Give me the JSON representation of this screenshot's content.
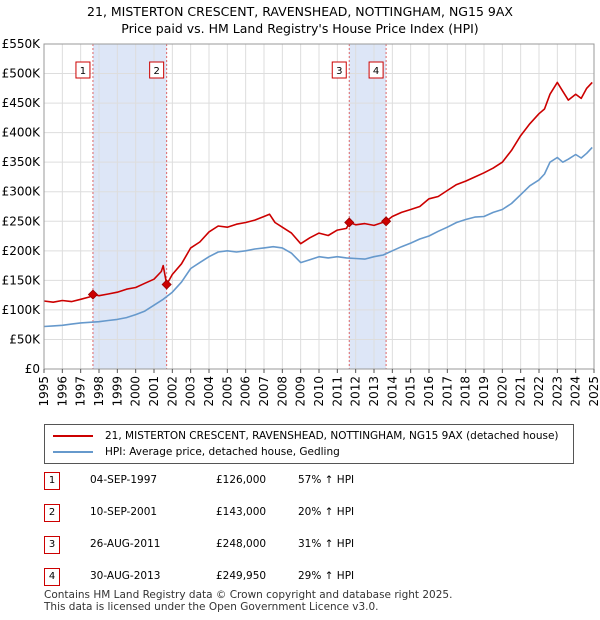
{
  "title_line1": "21, MISTERTON CRESCENT, RAVENSHEAD, NOTTINGHAM, NG15 9AX",
  "title_line2": "Price paid vs. HM Land Registry's House Price Index (HPI)",
  "colors": {
    "property": "#cc0000",
    "hpi": "#6699cc",
    "shade": "#dde6f7",
    "grid": "#dddddd",
    "marker": "#cc0000"
  },
  "legend": {
    "property_label": "21, MISTERTON CRESCENT, RAVENSHEAD, NOTTINGHAM, NG15 9AX (detached house)",
    "hpi_label": "HPI: Average price, detached house, Gedling"
  },
  "transactions": [
    {
      "num": "1",
      "date": "04-SEP-1997",
      "price": "£126,000",
      "hpi_change": "57% ↑ HPI"
    },
    {
      "num": "2",
      "date": "10-SEP-2001",
      "price": "£143,000",
      "hpi_change": "20% ↑ HPI"
    },
    {
      "num": "3",
      "date": "26-AUG-2011",
      "price": "£248,000",
      "hpi_change": "31% ↑ HPI"
    },
    {
      "num": "4",
      "date": "30-AUG-2013",
      "price": "£249,950",
      "hpi_change": "29% ↑ HPI"
    }
  ],
  "footer_line1": "Contains HM Land Registry data © Crown copyright and database right 2025.",
  "footer_line2": "This data is licensed under the Open Government Licence v3.0.",
  "chart_data": {
    "type": "line",
    "title": "21, MISTERTON CRESCENT, RAVENSHEAD, NOTTINGHAM, NG15 9AX - Price paid vs. HM Land Registry's House Price Index (HPI)",
    "xlabel": "",
    "ylabel": "",
    "xlim": [
      1995,
      2025
    ],
    "ylim": [
      0,
      550000
    ],
    "x_ticks": [
      1995,
      1996,
      1997,
      1998,
      1999,
      2000,
      2001,
      2002,
      2003,
      2004,
      2005,
      2006,
      2007,
      2008,
      2009,
      2010,
      2011,
      2012,
      2013,
      2014,
      2015,
      2016,
      2017,
      2018,
      2019,
      2020,
      2021,
      2022,
      2023,
      2024,
      2025
    ],
    "y_ticks": [
      0,
      50000,
      100000,
      150000,
      200000,
      250000,
      300000,
      350000,
      400000,
      450000,
      500000,
      550000
    ],
    "y_tick_labels": [
      "£0",
      "£50K",
      "£100K",
      "£150K",
      "£200K",
      "£250K",
      "£300K",
      "£350K",
      "£400K",
      "£450K",
      "£500K",
      "£550K"
    ],
    "shaded_ranges": [
      [
        1997.67,
        2001.69
      ],
      [
        2011.65,
        2013.66
      ]
    ],
    "sale_markers": [
      {
        "label": "1",
        "x": 1997.67,
        "y": 126000
      },
      {
        "label": "2",
        "x": 2001.69,
        "y": 143000
      },
      {
        "label": "3",
        "x": 2011.65,
        "y": 248000
      },
      {
        "label": "4",
        "x": 2013.66,
        "y": 249950
      }
    ],
    "series": [
      {
        "name": "21, MISTERTON CRESCENT, RAVENSHEAD, NOTTINGHAM, NG15 9AX (detached house)",
        "color": "#cc0000",
        "x": [
          1995.0,
          1995.5,
          1996.0,
          1996.5,
          1997.0,
          1997.5,
          1997.67,
          1998.0,
          1998.5,
          1999.0,
          1999.5,
          2000.0,
          2000.5,
          2001.0,
          2001.4,
          2001.5,
          2001.69,
          2002.0,
          2002.5,
          2003.0,
          2003.5,
          2004.0,
          2004.5,
          2005.0,
          2005.5,
          2006.0,
          2006.5,
          2007.0,
          2007.3,
          2007.6,
          2008.0,
          2008.5,
          2009.0,
          2009.5,
          2010.0,
          2010.5,
          2011.0,
          2011.5,
          2011.65,
          2012.0,
          2012.5,
          2013.0,
          2013.66,
          2014.0,
          2014.5,
          2015.0,
          2015.5,
          2016.0,
          2016.5,
          2017.0,
          2017.5,
          2018.0,
          2018.5,
          2019.0,
          2019.5,
          2020.0,
          2020.5,
          2021.0,
          2021.5,
          2022.0,
          2022.3,
          2022.6,
          2023.0,
          2023.3,
          2023.6,
          2024.0,
          2024.3,
          2024.6,
          2024.9
        ],
        "y": [
          115000,
          113000,
          116000,
          114000,
          118000,
          122000,
          126000,
          124000,
          127000,
          130000,
          135000,
          138000,
          145000,
          152000,
          165000,
          175000,
          143000,
          160000,
          178000,
          205000,
          215000,
          232000,
          242000,
          240000,
          245000,
          248000,
          252000,
          258000,
          262000,
          248000,
          240000,
          230000,
          212000,
          222000,
          230000,
          226000,
          235000,
          238000,
          248000,
          244000,
          246000,
          243000,
          249950,
          258000,
          265000,
          270000,
          275000,
          288000,
          292000,
          302000,
          312000,
          318000,
          325000,
          332000,
          340000,
          350000,
          370000,
          395000,
          415000,
          432000,
          440000,
          465000,
          485000,
          470000,
          455000,
          465000,
          458000,
          475000,
          485000
        ]
      },
      {
        "name": "HPI: Average price, detached house, Gedling",
        "color": "#6699cc",
        "x": [
          1995.0,
          1995.5,
          1996.0,
          1996.5,
          1997.0,
          1997.5,
          1998.0,
          1998.5,
          1999.0,
          1999.5,
          2000.0,
          2000.5,
          2001.0,
          2001.5,
          2002.0,
          2002.5,
          2003.0,
          2003.5,
          2004.0,
          2004.5,
          2005.0,
          2005.5,
          2006.0,
          2006.5,
          2007.0,
          2007.5,
          2008.0,
          2008.5,
          2009.0,
          2009.5,
          2010.0,
          2010.5,
          2011.0,
          2011.5,
          2012.0,
          2012.5,
          2013.0,
          2013.5,
          2014.0,
          2014.5,
          2015.0,
          2015.5,
          2016.0,
          2016.5,
          2017.0,
          2017.5,
          2018.0,
          2018.5,
          2019.0,
          2019.5,
          2020.0,
          2020.5,
          2021.0,
          2021.5,
          2022.0,
          2022.3,
          2022.6,
          2023.0,
          2023.3,
          2023.6,
          2024.0,
          2024.3,
          2024.6,
          2024.9
        ],
        "y": [
          72000,
          73000,
          74000,
          76000,
          78000,
          79000,
          80000,
          82000,
          84000,
          87000,
          92000,
          98000,
          108000,
          118000,
          130000,
          147000,
          170000,
          180000,
          190000,
          198000,
          200000,
          198000,
          200000,
          203000,
          205000,
          207000,
          205000,
          196000,
          180000,
          185000,
          190000,
          188000,
          190000,
          188000,
          187000,
          186000,
          190000,
          193000,
          200000,
          207000,
          213000,
          220000,
          225000,
          233000,
          240000,
          248000,
          253000,
          257000,
          258000,
          265000,
          270000,
          280000,
          295000,
          310000,
          320000,
          330000,
          350000,
          358000,
          350000,
          355000,
          363000,
          357000,
          365000,
          375000
        ]
      }
    ]
  }
}
